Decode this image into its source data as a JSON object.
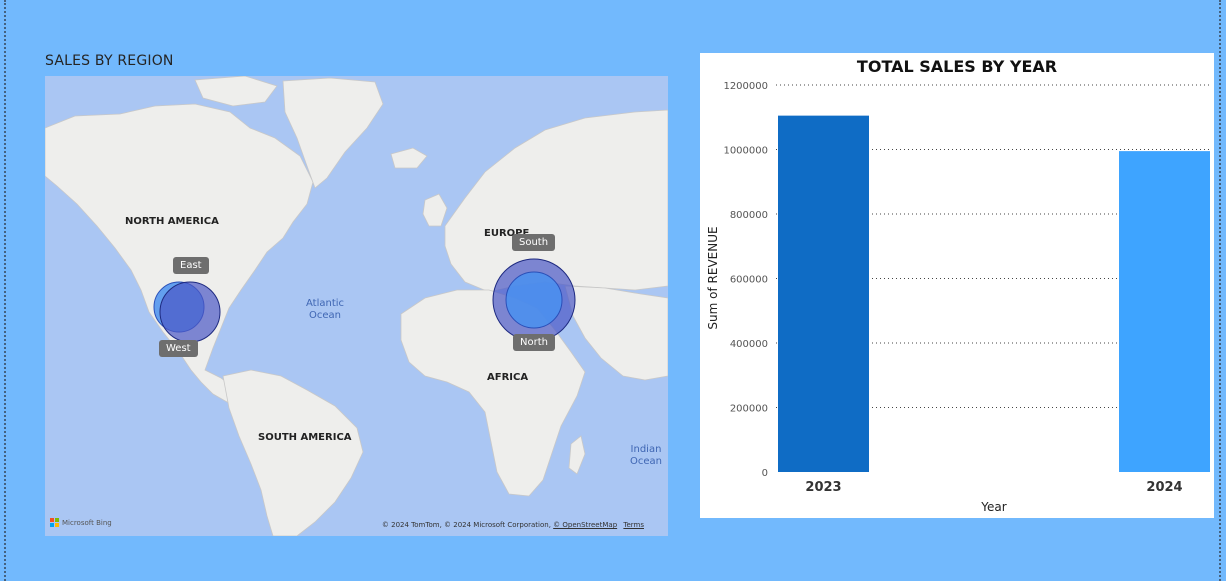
{
  "map": {
    "title": "SALES BY REGION",
    "continents": [
      {
        "id": "north-america",
        "label": "NORTH AMERICA"
      },
      {
        "id": "europe",
        "label": "EUROPE"
      },
      {
        "id": "africa",
        "label": "AFRICA"
      },
      {
        "id": "south-america",
        "label": "SOUTH AMERICA"
      }
    ],
    "oceans": [
      {
        "id": "atlantic",
        "line1": "Atlantic",
        "line2": "Ocean"
      },
      {
        "id": "indian",
        "line1": "Indian",
        "line2": "Ocean"
      }
    ],
    "regions": [
      {
        "name": "East"
      },
      {
        "name": "West"
      },
      {
        "name": "South"
      },
      {
        "name": "North"
      }
    ],
    "logo_text": "Microsoft Bing",
    "attribution": "© 2024 TomTom, © 2024 Microsoft Corporation,",
    "attribution_link": "© OpenStreetMap",
    "terms": "Terms",
    "colors": {
      "water": "#aac6f3",
      "land": "#eeeeec",
      "bubble_light": "#4a90f0",
      "bubble_dark": "#4b58c6"
    }
  },
  "chart_data": {
    "type": "bar",
    "title": "TOTAL SALES BY YEAR",
    "xlabel": "Year",
    "ylabel": "Sum of REVENUE",
    "categories": [
      "2023",
      "2024"
    ],
    "values": [
      1105000,
      995000
    ],
    "bar_colors": [
      "#0f6cc5",
      "#3ea4ff"
    ],
    "ylim": [
      0,
      1200000
    ],
    "yticks": [
      "0",
      "200000",
      "400000",
      "600000",
      "800000",
      "1000000",
      "1200000"
    ],
    "grid": true
  }
}
